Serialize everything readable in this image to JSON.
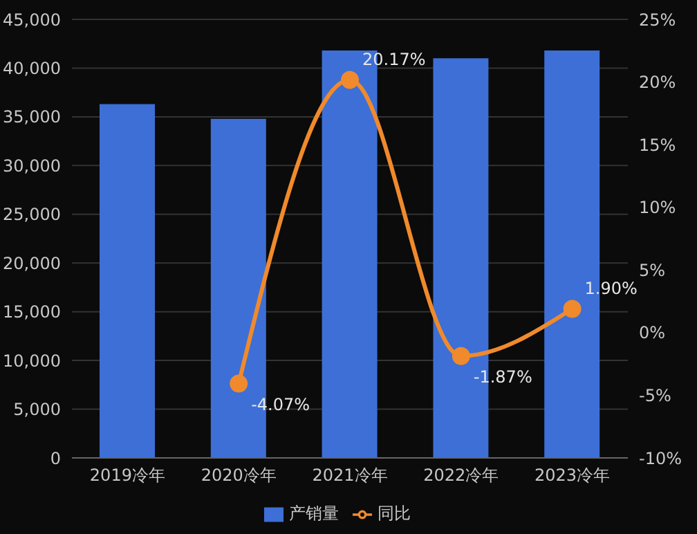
{
  "chart_data": {
    "type": "bar",
    "categories": [
      "2019冷年",
      "2020冷年",
      "2021冷年",
      "2022冷年",
      "2023冷年"
    ],
    "series": [
      {
        "name": "产销量",
        "color": "#3d6fd6",
        "values": [
          36300,
          34800,
          41800,
          41000,
          41800
        ]
      },
      {
        "name": "同比",
        "type": "line",
        "axis": "y2",
        "color": "#f08a2c",
        "values": [
          null,
          -4.07,
          20.17,
          -1.87,
          1.9
        ],
        "value_labels": [
          null,
          "-4.07%",
          "20.17%",
          "-1.87%",
          "1.90%"
        ]
      }
    ],
    "ylim": [
      0,
      45000
    ],
    "yticks": [
      0,
      {
        "value": 5000,
        "label": "5,000"
      },
      {
        "value": 10000,
        "label": "10,000"
      },
      {
        "value": 15000,
        "label": "15,000"
      },
      {
        "value": 20000,
        "label": "20,000"
      },
      {
        "value": 25000,
        "label": "25,000"
      },
      {
        "value": 30000,
        "label": "30,000"
      },
      {
        "value": 35000,
        "label": "35,000"
      },
      {
        "value": 40000,
        "label": "40,000"
      },
      {
        "value": 45000,
        "label": "45,000"
      }
    ],
    "y2lim": [
      -10,
      25
    ],
    "y2ticks": [
      {
        "value": -10,
        "label": "-10%"
      },
      {
        "value": -5,
        "label": "-5%"
      },
      {
        "value": 0,
        "label": "0%"
      },
      {
        "value": 5,
        "label": "5%"
      },
      {
        "value": 10,
        "label": "10%"
      },
      {
        "value": 15,
        "label": "15%"
      },
      {
        "value": 20,
        "label": "20%"
      },
      {
        "value": 25,
        "label": "25%"
      }
    ],
    "grid": "y",
    "legend": "bottom",
    "marker": "circle"
  }
}
